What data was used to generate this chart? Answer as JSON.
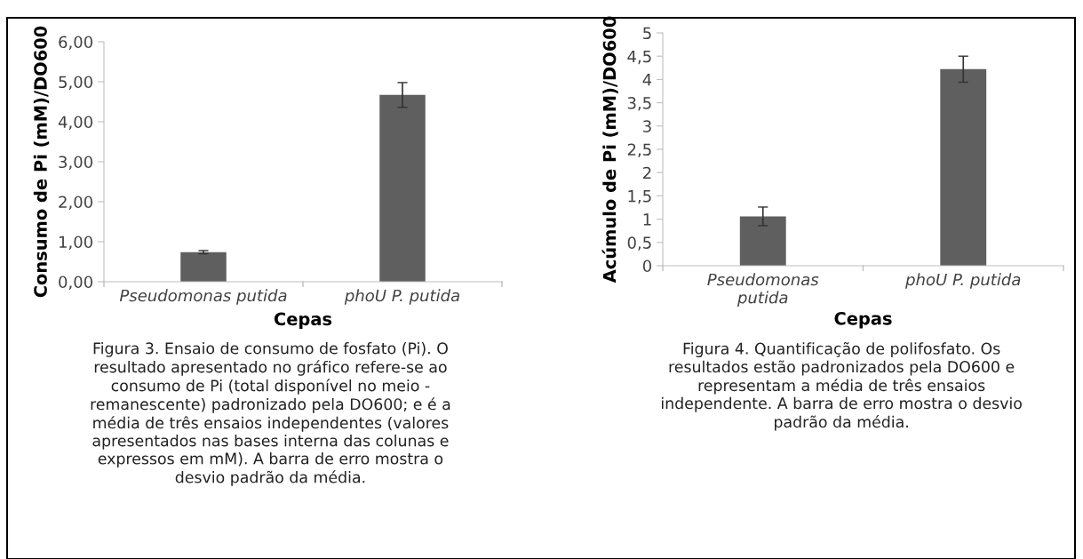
{
  "chart_data": [
    {
      "type": "bar",
      "categories": [
        "Pseudomonas putida",
        "phoU P. putida"
      ],
      "values": [
        0.74,
        4.67
      ],
      "errors": [
        0.04,
        0.31
      ],
      "color": "#5f5f5f",
      "ylabel": "Consumo de Pi (mM)/DO600",
      "xlabel": "Cepas",
      "ylim": [
        0,
        6
      ],
      "yticks": [
        {
          "value": 0,
          "label": "0,00"
        },
        {
          "value": 1,
          "label": "1,00"
        },
        {
          "value": 2,
          "label": "2,00"
        },
        {
          "value": 3,
          "label": "3,00"
        },
        {
          "value": 4,
          "label": "4,00"
        },
        {
          "value": 5,
          "label": "5,00"
        },
        {
          "value": 6,
          "label": "6,00"
        }
      ],
      "grid": false,
      "annotations": [
        "Figura 3. Ensaio de consumo de fosfato (Pi). O\nresultado apresentado no gráfico refere-se ao\nconsumo de Pi (total disponível no meio -\nremanescente) padronizado pela DO600; e é a\nmédia de três ensaios independentes (valores\napresentados nas bases interna das colunas e\nexpressos em mM). A barra de erro mostra o\ndesvio padrão da média."
      ]
    },
    {
      "type": "bar",
      "categories": [
        "Pseudomonas\nputida",
        "phoU P. putida"
      ],
      "values": [
        1.06,
        4.22
      ],
      "errors": [
        0.2,
        0.28
      ],
      "color": "#5f5f5f",
      "ylabel": "Acúmulo de Pi (mM)/DO600",
      "xlabel": "Cepas",
      "ylim": [
        0,
        5
      ],
      "yticks": [
        0,
        {
          "value": 0.5,
          "label": "0,5"
        },
        1,
        {
          "value": 1.5,
          "label": "1,5"
        },
        2,
        {
          "value": 2.5,
          "label": "2,5"
        },
        3,
        {
          "value": 3.5,
          "label": "3,5"
        },
        4,
        {
          "value": 4.5,
          "label": "4,5"
        },
        5
      ],
      "grid": false,
      "annotations": [
        "Figura 4. Quantificação de polifosfato. Os\nresultados estão padronizados pela DO600 e\nrepresentam a média de três ensaios\nindependente. A barra de erro mostra o desvio\npadrão da média."
      ]
    }
  ]
}
